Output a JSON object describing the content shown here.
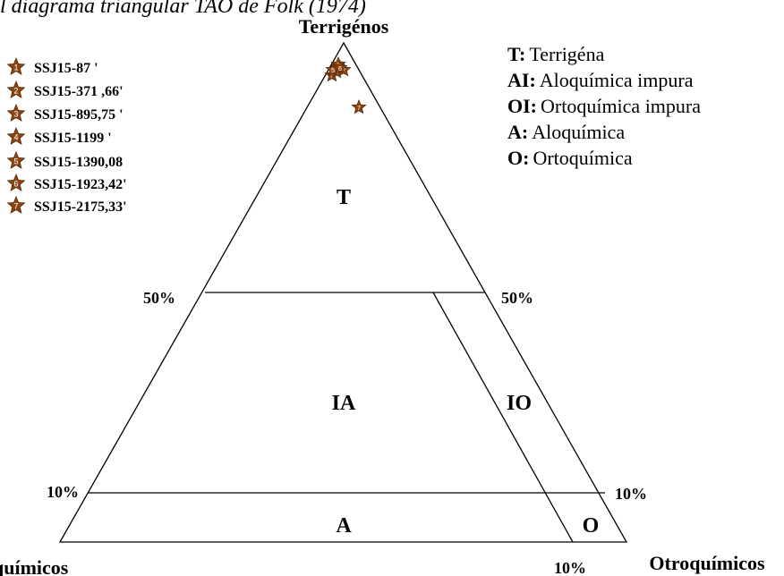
{
  "title": "l diagrama triangular TAO de Folk (1974)",
  "vertices": {
    "top": "Terrigénos",
    "left": "químicos",
    "right": "Otroquímicos"
  },
  "percent_labels": {
    "left_50": "50%",
    "right_50": "50%",
    "left_10": "10%",
    "right_10": "10%",
    "bottom_10": "10%"
  },
  "regions": {
    "t": "T",
    "ia": "IA",
    "io": "IO",
    "a": "A",
    "o": "O"
  },
  "legend": [
    {
      "key": "T:",
      "text": "Terrigéna"
    },
    {
      "key": "AI:",
      "text": "Aloquímica impura"
    },
    {
      "key": "OI:",
      "text": "Ortoquímica impura"
    },
    {
      "key": "A:",
      "text": "Aloquímica"
    },
    {
      "key": "O:",
      "text": "Ortoquímica"
    }
  ],
  "samples": [
    {
      "number": "1",
      "label": "SSJ15-87 '"
    },
    {
      "number": "2",
      "label": "SSJ15-371 ,66'"
    },
    {
      "number": "3",
      "label": "SSJ15-895,75 '"
    },
    {
      "number": "4",
      "label": "SSJ15-1199 '"
    },
    {
      "number": "5",
      "label": "SSJ15-1390,08"
    },
    {
      "number": "6",
      "label": "SSJ15-1923,42'"
    },
    {
      "number": "7",
      "label": "SSJ15-2175,33'"
    }
  ]
}
